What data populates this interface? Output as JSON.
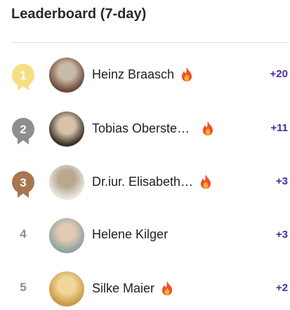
{
  "header": {
    "title": "Leaderboard (7-day)"
  },
  "rows": [
    {
      "rank": "1",
      "name": "Heinz Braasch",
      "points": "+20",
      "streak": true,
      "medal_color": "#f6df82"
    },
    {
      "rank": "2",
      "name": "Tobias Oberste…",
      "points": "+11",
      "streak": true,
      "medal_color": "#8e8e8e"
    },
    {
      "rank": "3",
      "name": "Dr.iur. Elisabeth…",
      "points": "+3",
      "streak": true,
      "medal_color": "#a8774f"
    },
    {
      "rank": "4",
      "name": "Helene Kilger",
      "points": "+3",
      "streak": false
    },
    {
      "rank": "5",
      "name": "Silke Maier",
      "points": "+2",
      "streak": true
    }
  ]
}
